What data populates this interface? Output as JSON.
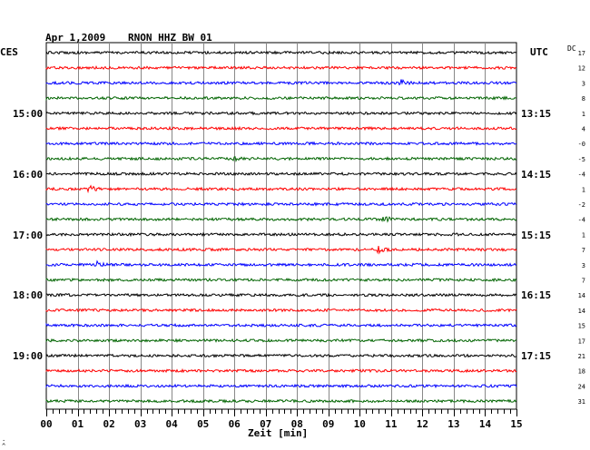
{
  "header": {
    "date": "Apr 1,2009",
    "station": "RNON HHZ BW 01",
    "left_tz": "CES",
    "right_tz": "UTC",
    "dc_label": "DC"
  },
  "chart_data": {
    "type": "line",
    "title": "Apr 1,2009  RNON HHZ BW 01",
    "xlabel": "Zeit [min]",
    "x_ticks": [
      "00",
      "01",
      "02",
      "03",
      "04",
      "05",
      "06",
      "07",
      "08",
      "09",
      "10",
      "11",
      "12",
      "13",
      "14",
      "15"
    ],
    "xlim": [
      0,
      15
    ],
    "grid": true,
    "left_hour_labels": [
      "15:00",
      "16:00",
      "17:00",
      "18:00",
      "19:00"
    ],
    "right_hour_labels": [
      "13:15",
      "14:15",
      "15:15",
      "16:15",
      "17:15"
    ],
    "traces": [
      {
        "color": "#000000",
        "dc": "17"
      },
      {
        "color": "#ff0000",
        "dc": "12"
      },
      {
        "color": "#0000ff",
        "dc": "3",
        "event_min": 11.3
      },
      {
        "color": "#006400",
        "dc": "8"
      },
      {
        "color": "#000000",
        "dc": "1"
      },
      {
        "color": "#ff0000",
        "dc": "4"
      },
      {
        "color": "#0000ff",
        "dc": "-0"
      },
      {
        "color": "#006400",
        "dc": "-5",
        "event_min": 6.0
      },
      {
        "color": "#000000",
        "dc": "-4"
      },
      {
        "color": "#ff0000",
        "dc": "1",
        "event_min": 1.4
      },
      {
        "color": "#0000ff",
        "dc": "-2"
      },
      {
        "color": "#006400",
        "dc": "-4",
        "event_min": 10.8
      },
      {
        "color": "#000000",
        "dc": "1"
      },
      {
        "color": "#ff0000",
        "dc": "7",
        "event_min": 10.6
      },
      {
        "color": "#0000ff",
        "dc": "3",
        "event_min": 1.6
      },
      {
        "color": "#006400",
        "dc": "7"
      },
      {
        "color": "#000000",
        "dc": "14"
      },
      {
        "color": "#ff0000",
        "dc": "14"
      },
      {
        "color": "#0000ff",
        "dc": "15"
      },
      {
        "color": "#006400",
        "dc": "17"
      },
      {
        "color": "#000000",
        "dc": "21"
      },
      {
        "color": "#ff0000",
        "dc": "18"
      },
      {
        "color": "#0000ff",
        "dc": "24"
      },
      {
        "color": "#006400",
        "dc": "31"
      }
    ]
  }
}
